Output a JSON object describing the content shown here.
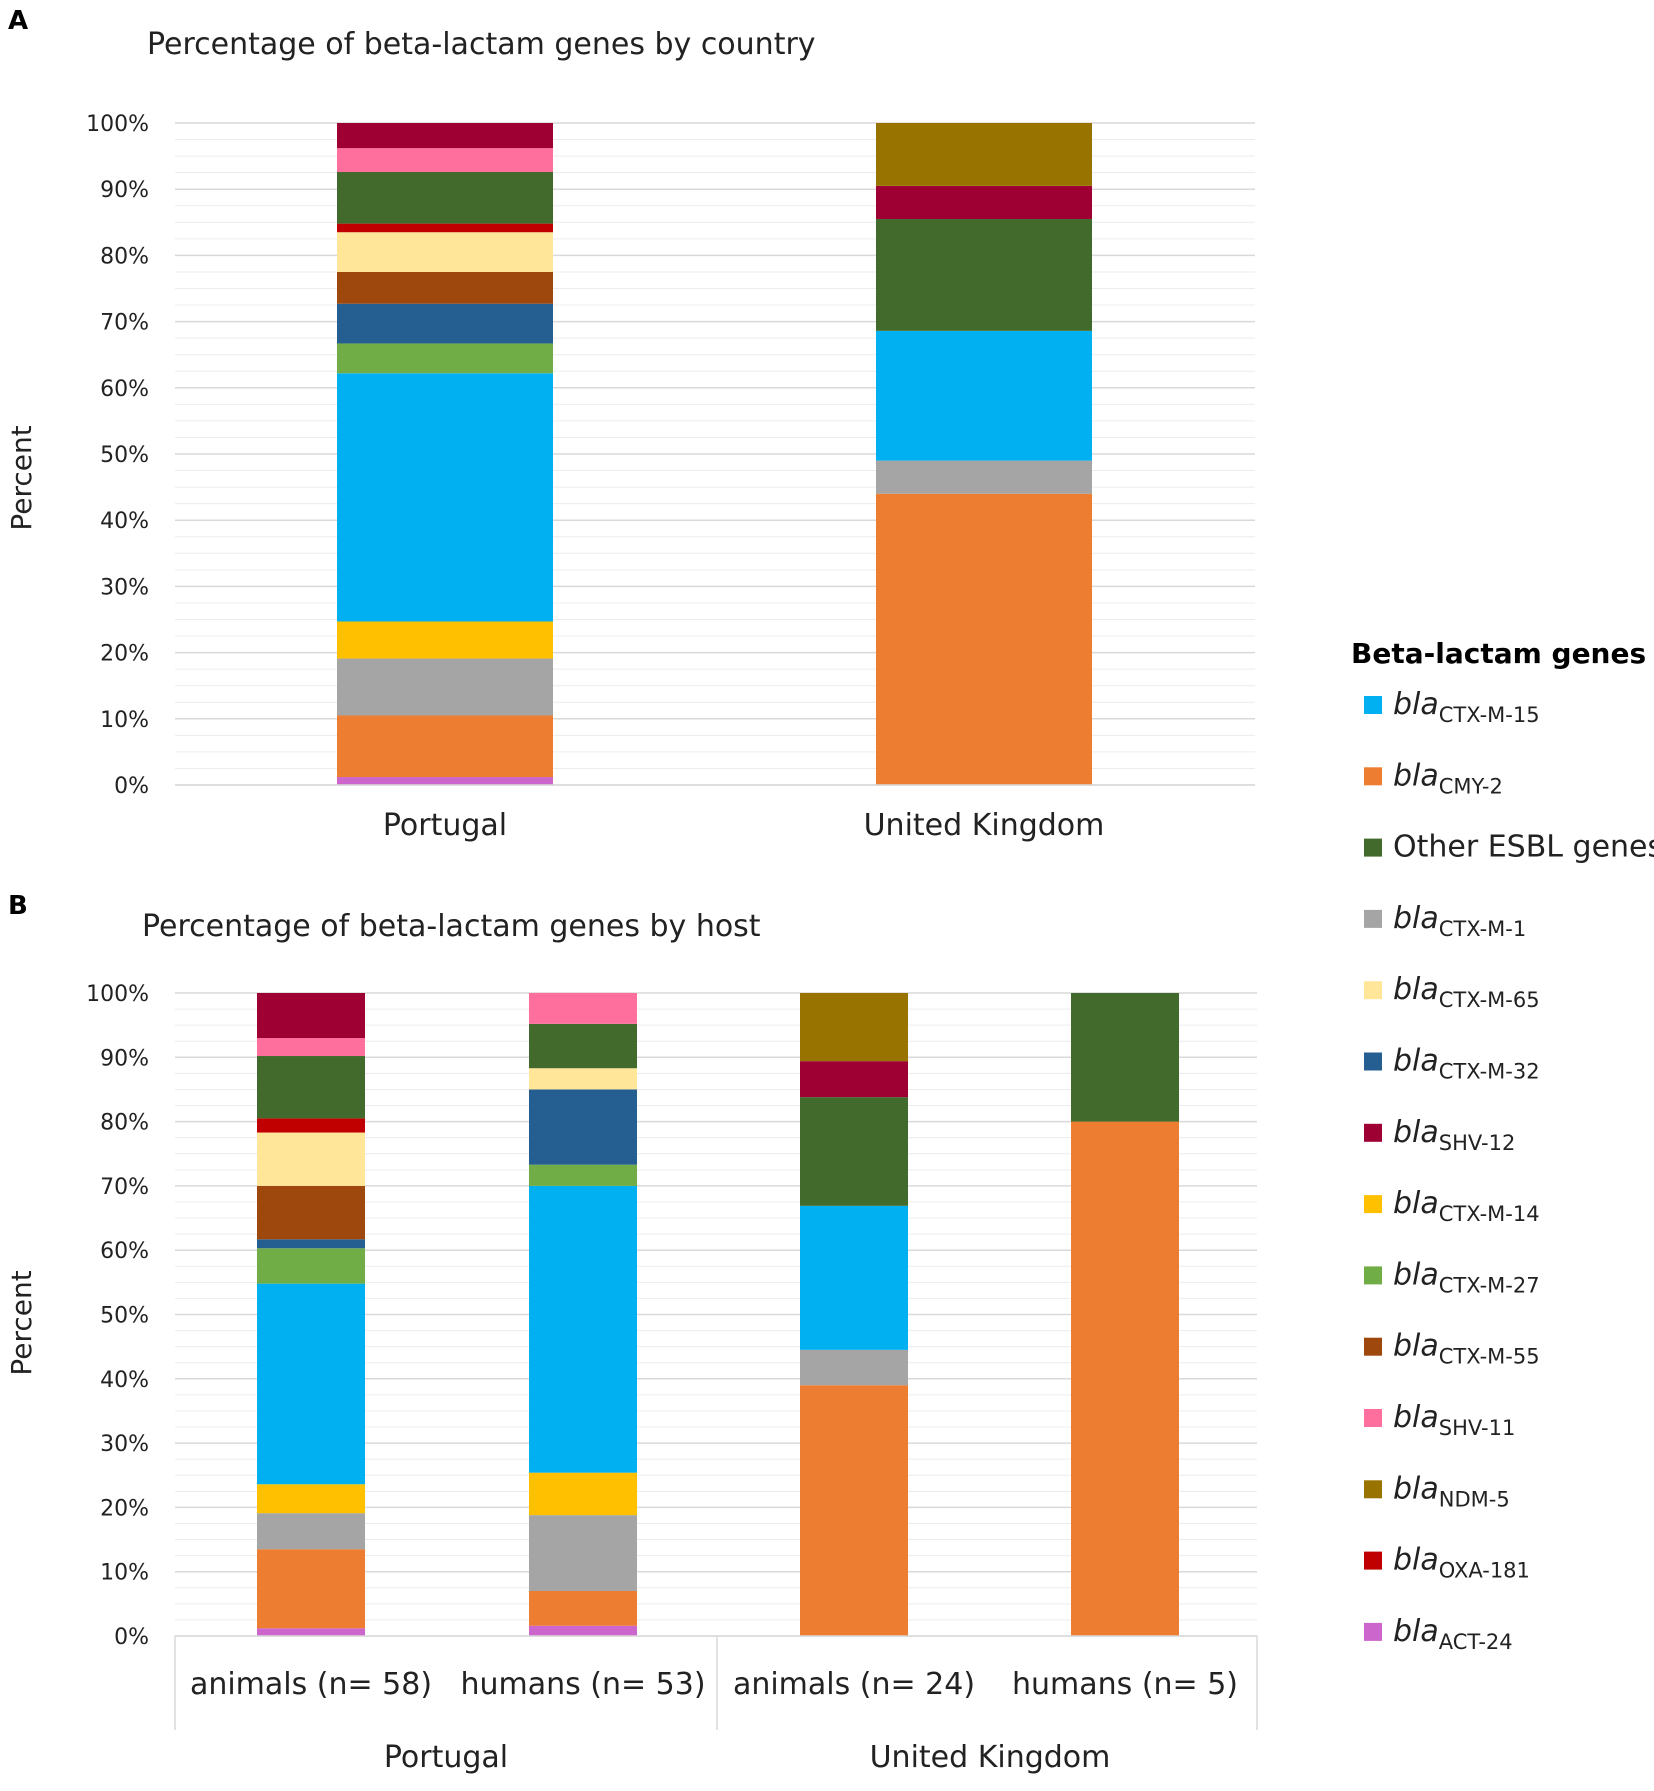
{
  "genes": [
    {
      "key": "ctxm15",
      "prefix": "bla",
      "sub": "CTX-M-15",
      "color": "#00b0f0"
    },
    {
      "key": "cmy2",
      "prefix": "bla",
      "sub": "CMY-2",
      "color": "#ed7d31"
    },
    {
      "key": "other",
      "label": "Other ESBL genes",
      "color": "#426a2d"
    },
    {
      "key": "ctxm1",
      "prefix": "bla",
      "sub": "CTX-M-1",
      "color": "#a5a5a5"
    },
    {
      "key": "ctxm65",
      "prefix": "bla",
      "sub": "CTX-M-65",
      "color": "#ffe699"
    },
    {
      "key": "ctxm32",
      "prefix": "bla",
      "sub": "CTX-M-32",
      "color": "#255e91"
    },
    {
      "key": "shv12",
      "prefix": "bla",
      "sub": "SHV-12",
      "color": "#9e0034"
    },
    {
      "key": "ctxm14",
      "prefix": "bla",
      "sub": "CTX-M-14",
      "color": "#ffc000"
    },
    {
      "key": "ctxm27",
      "prefix": "bla",
      "sub": "CTX-M-27",
      "color": "#70ad47"
    },
    {
      "key": "ctxm55",
      "prefix": "bla",
      "sub": "CTX-M-55",
      "color": "#9e480e"
    },
    {
      "key": "shv11",
      "prefix": "bla",
      "sub": "SHV-11",
      "color": "#ff6f9e"
    },
    {
      "key": "ndm5",
      "prefix": "bla",
      "sub": "NDM-5",
      "color": "#997300"
    },
    {
      "key": "oxa181",
      "prefix": "bla",
      "sub": "OXA-181",
      "color": "#c00000"
    },
    {
      "key": "act24",
      "prefix": "bla",
      "sub": "ACT-24",
      "color": "#cc66cc"
    }
  ],
  "legend": {
    "title": "Beta-lactam genes",
    "placement": "right"
  },
  "chart_data": [
    {
      "panel": "A",
      "type": "bar",
      "stacked": true,
      "title": "Percentage of beta-lactam genes by country",
      "ylabel": "Percent",
      "xlabel": "",
      "ylim": [
        0,
        100
      ],
      "yticks": [
        "0%",
        "10%",
        "20%",
        "30%",
        "40%",
        "50%",
        "60%",
        "70%",
        "80%",
        "90%",
        "100%"
      ],
      "categories": [
        "Portugal",
        "United Kingdom"
      ],
      "stack_order": [
        "act24",
        "cmy2",
        "ctxm1",
        "ctxm14",
        "ctxm15",
        "ctxm27",
        "ctxm32",
        "ctxm55",
        "ctxm65",
        "oxa181",
        "other",
        "shv11",
        "shv12",
        "ndm5"
      ],
      "series": [
        {
          "name": "blaACT-24",
          "key": "act24",
          "values": [
            1.2,
            0
          ]
        },
        {
          "name": "blaCMY-2",
          "key": "cmy2",
          "values": [
            9.3,
            44.0
          ]
        },
        {
          "name": "blaCTX-M-1",
          "key": "ctxm1",
          "values": [
            8.6,
            5.0
          ]
        },
        {
          "name": "blaCTX-M-14",
          "key": "ctxm14",
          "values": [
            5.6,
            0
          ]
        },
        {
          "name": "blaCTX-M-15",
          "key": "ctxm15",
          "values": [
            37.5,
            19.6
          ]
        },
        {
          "name": "blaCTX-M-27",
          "key": "ctxm27",
          "values": [
            4.5,
            0
          ]
        },
        {
          "name": "blaCTX-M-32",
          "key": "ctxm32",
          "values": [
            6.0,
            0
          ]
        },
        {
          "name": "blaCTX-M-55",
          "key": "ctxm55",
          "values": [
            4.8,
            0
          ]
        },
        {
          "name": "blaCTX-M-65",
          "key": "ctxm65",
          "values": [
            6.0,
            0
          ]
        },
        {
          "name": "blaOXA-181",
          "key": "oxa181",
          "values": [
            1.3,
            0
          ]
        },
        {
          "name": "Other ESBL genes",
          "key": "other",
          "values": [
            7.8,
            16.9
          ]
        },
        {
          "name": "blaSHV-11",
          "key": "shv11",
          "values": [
            3.6,
            0
          ]
        },
        {
          "name": "blaSHV-12",
          "key": "shv12",
          "values": [
            3.8,
            5.0
          ]
        },
        {
          "name": "blaNDM-5",
          "key": "ndm5",
          "values": [
            0,
            9.5
          ]
        }
      ]
    },
    {
      "panel": "B",
      "type": "bar",
      "stacked": true,
      "title": "Percentage of beta-lactam genes by host",
      "ylabel": "Percent",
      "xlabel": "",
      "ylim": [
        0,
        100
      ],
      "yticks": [
        "0%",
        "10%",
        "20%",
        "30%",
        "40%",
        "50%",
        "60%",
        "70%",
        "80%",
        "90%",
        "100%"
      ],
      "categories": [
        "animals (n= 58)",
        "humans (n= 53)",
        "animals (n= 24)",
        "humans (n= 5)"
      ],
      "groups": [
        {
          "label": "Portugal",
          "span": [
            0,
            1
          ]
        },
        {
          "label": "United Kingdom",
          "span": [
            2,
            3
          ]
        }
      ],
      "stack_order": [
        "act24",
        "cmy2",
        "ctxm1",
        "ctxm14",
        "ctxm15",
        "ctxm27",
        "ctxm32",
        "ctxm55",
        "ctxm65",
        "oxa181",
        "other",
        "shv11",
        "shv12",
        "ndm5"
      ],
      "series": [
        {
          "name": "blaACT-24",
          "key": "act24",
          "values": [
            1.2,
            1.6,
            0,
            0
          ]
        },
        {
          "name": "blaCMY-2",
          "key": "cmy2",
          "values": [
            12.3,
            5.4,
            39.0,
            80.0
          ]
        },
        {
          "name": "blaCTX-M-1",
          "key": "ctxm1",
          "values": [
            5.6,
            11.8,
            5.5,
            0
          ]
        },
        {
          "name": "blaCTX-M-14",
          "key": "ctxm14",
          "values": [
            4.5,
            6.6,
            0,
            0
          ]
        },
        {
          "name": "blaCTX-M-15",
          "key": "ctxm15",
          "values": [
            31.2,
            44.6,
            22.4,
            0
          ]
        },
        {
          "name": "blaCTX-M-27",
          "key": "ctxm27",
          "values": [
            5.5,
            3.3,
            0,
            0
          ]
        },
        {
          "name": "blaCTX-M-32",
          "key": "ctxm32",
          "values": [
            1.4,
            11.7,
            0,
            0
          ]
        },
        {
          "name": "blaCTX-M-55",
          "key": "ctxm55",
          "values": [
            8.3,
            0,
            0,
            0
          ]
        },
        {
          "name": "blaCTX-M-65",
          "key": "ctxm65",
          "values": [
            8.3,
            3.3,
            0,
            0
          ]
        },
        {
          "name": "blaOXA-181",
          "key": "oxa181",
          "values": [
            2.2,
            0,
            0,
            0
          ]
        },
        {
          "name": "Other ESBL genes",
          "key": "other",
          "values": [
            9.7,
            6.9,
            16.9,
            20.0
          ]
        },
        {
          "name": "blaSHV-11",
          "key": "shv11",
          "values": [
            2.8,
            4.8,
            0,
            0
          ]
        },
        {
          "name": "blaSHV-12",
          "key": "shv12",
          "values": [
            7.0,
            0,
            5.6,
            0
          ]
        },
        {
          "name": "blaNDM-5",
          "key": "ndm5",
          "values": [
            0,
            0,
            10.6,
            0
          ]
        }
      ]
    }
  ]
}
